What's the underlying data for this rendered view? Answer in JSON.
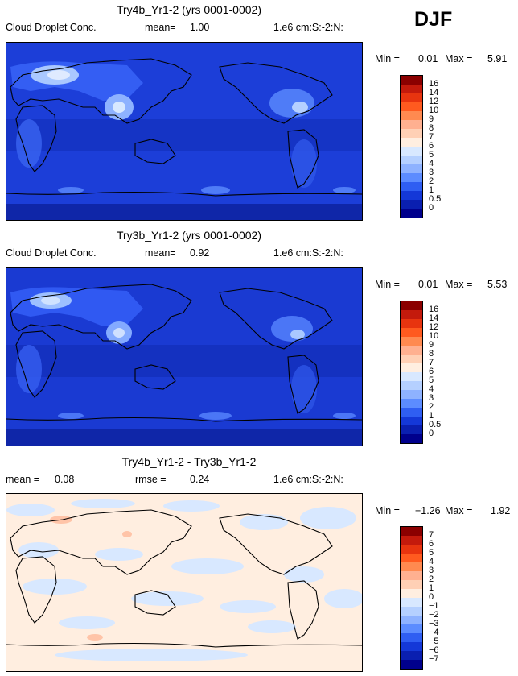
{
  "season": "DJF",
  "panels": [
    {
      "title": "Try4b_Yr1-2 (yrs 0001-0002)",
      "variable": "Cloud Droplet Conc.",
      "stat1_label": "mean=",
      "stat1_value": "1.00",
      "stat2_label": "",
      "stat2_value": "",
      "units": "1.e6 cm:S:-2:N:",
      "min_label": "Min =",
      "min_value": "0.01",
      "max_label": "Max =",
      "max_value": "5.91",
      "colorbar_labels": [
        "16",
        "14",
        "12",
        "10",
        "9",
        "8",
        "7",
        "6",
        "5",
        "4",
        "3",
        "2",
        "1",
        "0.5",
        "0"
      ]
    },
    {
      "title": "Try3b_Yr1-2 (yrs 0001-0002)",
      "variable": "Cloud Droplet Conc.",
      "stat1_label": "mean=",
      "stat1_value": "0.92",
      "stat2_label": "",
      "stat2_value": "",
      "units": "1.e6 cm:S:-2:N:",
      "min_label": "Min =",
      "min_value": "0.01",
      "max_label": "Max =",
      "max_value": "5.53",
      "colorbar_labels": [
        "16",
        "14",
        "12",
        "10",
        "9",
        "8",
        "7",
        "6",
        "5",
        "4",
        "3",
        "2",
        "1",
        "0.5",
        "0"
      ]
    },
    {
      "title": "Try4b_Yr1-2 - Try3b_Yr1-2",
      "variable": "",
      "stat1_label": "mean =",
      "stat1_value": "0.08",
      "stat2_label": "rmse =",
      "stat2_value": "0.24",
      "units": "1.e6 cm:S:-2:N:",
      "min_label": "Min =",
      "min_value": "−1.26",
      "max_label": "Max =",
      "max_value": "1.92",
      "colorbar_labels": [
        "7",
        "6",
        "5",
        "4",
        "3",
        "2",
        "1",
        "0",
        "−1",
        "−2",
        "−3",
        "−4",
        "−5",
        "−6",
        "−7"
      ]
    }
  ],
  "colors": {
    "abs_scale": [
      "#8b0000",
      "#c41a0c",
      "#e8340f",
      "#ff5a1f",
      "#ff8a50",
      "#ffb090",
      "#ffd0b5",
      "#ffeee0",
      "#d8e8ff",
      "#b5d0ff",
      "#8eb2ff",
      "#5c8cff",
      "#2f5ef2",
      "#1438d8",
      "#0a1fb0",
      "#00008c"
    ],
    "diff_scale": [
      "#8b0000",
      "#c41a0c",
      "#e8340f",
      "#ff5a1f",
      "#ff8a50",
      "#ffb090",
      "#ffd0b5",
      "#ffeee0",
      "#d8e8ff",
      "#b5d0ff",
      "#8eb2ff",
      "#5c8cff",
      "#2f5ef2",
      "#1438d8",
      "#0a1fb0",
      "#00008c"
    ]
  },
  "chart_data": [
    {
      "type": "heatmap",
      "title": "Try4b_Yr1-2 (yrs 0001-0002)",
      "field": "Cloud Droplet Conc.",
      "units": "1.e6 cm:S:-2:N:",
      "mean": 1.0,
      "min": 0.01,
      "max": 5.91,
      "levels": [
        0,
        0.5,
        1,
        2,
        3,
        4,
        5,
        6,
        7,
        8,
        9,
        10,
        12,
        14,
        16
      ]
    },
    {
      "type": "heatmap",
      "title": "Try3b_Yr1-2 (yrs 0001-0002)",
      "field": "Cloud Droplet Conc.",
      "units": "1.e6 cm:S:-2:N:",
      "mean": 0.92,
      "min": 0.01,
      "max": 5.53,
      "levels": [
        0,
        0.5,
        1,
        2,
        3,
        4,
        5,
        6,
        7,
        8,
        9,
        10,
        12,
        14,
        16
      ]
    },
    {
      "type": "heatmap",
      "title": "Try4b_Yr1-2 - Try3b_Yr1-2",
      "units": "1.e6 cm:S:-2:N:",
      "mean": 0.08,
      "rmse": 0.24,
      "min": -1.26,
      "max": 1.92,
      "levels": [
        -7,
        -6,
        -5,
        -4,
        -3,
        -2,
        -1,
        0,
        1,
        2,
        3,
        4,
        5,
        6,
        7
      ]
    }
  ]
}
